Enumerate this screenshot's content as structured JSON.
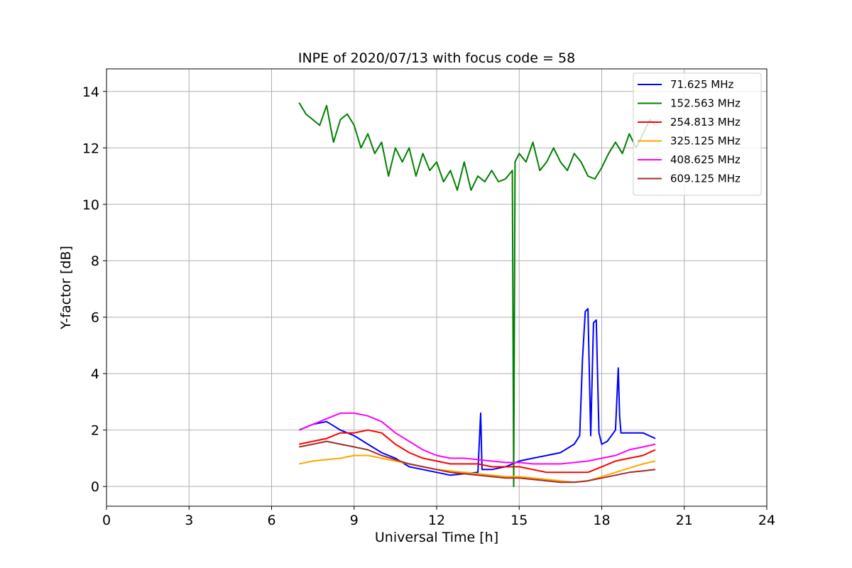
{
  "chart_data": {
    "type": "line",
    "title": "INPE of 2020/07/13 with focus code = 58",
    "xlabel": "Universal Time [h]",
    "ylabel": "Y-factor [dB]",
    "xlim": [
      0,
      24
    ],
    "ylim": [
      -0.7,
      14.8
    ],
    "xticks": [
      0,
      3,
      6,
      9,
      12,
      15,
      18,
      21,
      24
    ],
    "yticks": [
      0,
      2,
      4,
      6,
      8,
      10,
      12,
      14
    ],
    "grid": true,
    "legend_position": "top-right",
    "series": [
      {
        "name": " 71.625 MHz",
        "color": "#0000ff",
        "x": [
          7.0,
          7.5,
          8.0,
          8.5,
          9.0,
          9.5,
          10.0,
          10.5,
          11.0,
          11.5,
          12.0,
          12.5,
          13.0,
          13.5,
          13.6,
          13.65,
          13.7,
          14.0,
          14.5,
          15.0,
          15.5,
          16.0,
          16.5,
          17.0,
          17.2,
          17.3,
          17.4,
          17.5,
          17.6,
          17.7,
          17.8,
          17.9,
          18.0,
          18.2,
          18.5,
          18.6,
          18.65,
          18.7,
          19.0,
          19.5,
          19.95
        ],
        "y": [
          2.0,
          2.2,
          2.3,
          2.0,
          1.8,
          1.5,
          1.2,
          1.0,
          0.7,
          0.6,
          0.5,
          0.4,
          0.45,
          0.5,
          2.6,
          0.6,
          0.6,
          0.6,
          0.7,
          0.9,
          1.0,
          1.1,
          1.2,
          1.5,
          1.8,
          4.5,
          6.2,
          6.3,
          1.8,
          5.8,
          5.9,
          1.9,
          1.5,
          1.6,
          2.0,
          4.2,
          2.5,
          1.9,
          1.9,
          1.9,
          1.7
        ]
      },
      {
        "name": "152.563 MHz",
        "color": "#008000",
        "x": [
          7.0,
          7.25,
          7.5,
          7.75,
          8.0,
          8.25,
          8.5,
          8.75,
          9.0,
          9.25,
          9.5,
          9.75,
          10.0,
          10.25,
          10.5,
          10.75,
          11.0,
          11.25,
          11.5,
          11.75,
          12.0,
          12.25,
          12.5,
          12.75,
          13.0,
          13.25,
          13.5,
          13.75,
          14.0,
          14.25,
          14.5,
          14.75,
          14.8,
          14.85,
          15.0,
          15.25,
          15.5,
          15.75,
          16.0,
          16.25,
          16.5,
          16.75,
          17.0,
          17.25,
          17.5,
          17.75,
          18.0,
          18.25,
          18.5,
          18.75,
          19.0,
          19.25,
          19.5,
          19.75,
          19.95
        ],
        "y": [
          13.6,
          13.2,
          13.0,
          12.8,
          13.5,
          12.2,
          13.0,
          13.2,
          12.8,
          12.0,
          12.5,
          11.8,
          12.2,
          11.0,
          12.0,
          11.5,
          12.0,
          11.0,
          11.8,
          11.2,
          11.5,
          10.8,
          11.2,
          10.5,
          11.5,
          10.5,
          11.0,
          10.8,
          11.2,
          10.8,
          10.9,
          11.2,
          0.0,
          11.5,
          11.8,
          11.5,
          12.2,
          11.2,
          11.5,
          12.0,
          11.5,
          11.2,
          11.8,
          11.5,
          11.0,
          10.9,
          11.3,
          11.8,
          12.2,
          11.8,
          12.5,
          12.0,
          12.5,
          13.0,
          12.8
        ]
      },
      {
        "name": "254.813 MHz",
        "color": "#ff0000",
        "x": [
          7.0,
          7.5,
          8.0,
          8.5,
          9.0,
          9.5,
          10.0,
          10.5,
          11.0,
          11.5,
          12.0,
          12.5,
          13.0,
          13.5,
          14.0,
          14.5,
          15.0,
          15.5,
          16.0,
          16.5,
          17.0,
          17.5,
          18.0,
          18.5,
          19.0,
          19.5,
          19.95
        ],
        "y": [
          1.5,
          1.6,
          1.7,
          1.9,
          1.9,
          2.0,
          1.9,
          1.5,
          1.2,
          1.0,
          0.9,
          0.8,
          0.8,
          0.8,
          0.7,
          0.7,
          0.7,
          0.6,
          0.5,
          0.5,
          0.5,
          0.5,
          0.7,
          0.9,
          1.0,
          1.1,
          1.3
        ]
      },
      {
        "name": "325.125 MHz",
        "color": "#ffa500",
        "x": [
          7.0,
          7.5,
          8.0,
          8.5,
          9.0,
          9.5,
          10.0,
          10.5,
          11.0,
          11.5,
          12.0,
          12.5,
          13.0,
          13.5,
          14.0,
          14.5,
          15.0,
          15.5,
          16.0,
          16.5,
          17.0,
          17.5,
          18.0,
          18.5,
          19.0,
          19.5,
          19.95
        ],
        "y": [
          0.8,
          0.9,
          0.95,
          1.0,
          1.1,
          1.1,
          1.0,
          0.9,
          0.8,
          0.7,
          0.6,
          0.55,
          0.5,
          0.45,
          0.4,
          0.35,
          0.35,
          0.3,
          0.25,
          0.2,
          0.15,
          0.2,
          0.35,
          0.5,
          0.65,
          0.8,
          0.9
        ]
      },
      {
        "name": "408.625 MHz",
        "color": "#ff00ff",
        "x": [
          7.0,
          7.5,
          8.0,
          8.5,
          9.0,
          9.5,
          10.0,
          10.5,
          11.0,
          11.5,
          12.0,
          12.5,
          13.0,
          13.5,
          14.0,
          14.5,
          15.0,
          15.5,
          16.0,
          16.5,
          17.0,
          17.5,
          18.0,
          18.5,
          19.0,
          19.5,
          19.95
        ],
        "y": [
          2.0,
          2.2,
          2.4,
          2.6,
          2.6,
          2.5,
          2.3,
          1.9,
          1.6,
          1.3,
          1.1,
          1.0,
          1.0,
          0.95,
          0.9,
          0.85,
          0.85,
          0.8,
          0.8,
          0.8,
          0.85,
          0.9,
          1.0,
          1.1,
          1.3,
          1.4,
          1.5
        ]
      },
      {
        "name": "609.125 MHz",
        "color": "#a52a2a",
        "x": [
          7.0,
          7.5,
          8.0,
          8.5,
          9.0,
          9.5,
          10.0,
          10.5,
          11.0,
          11.5,
          12.0,
          12.5,
          13.0,
          13.5,
          14.0,
          14.5,
          15.0,
          15.5,
          16.0,
          16.5,
          17.0,
          17.5,
          18.0,
          18.5,
          19.0,
          19.5,
          19.95
        ],
        "y": [
          1.4,
          1.5,
          1.6,
          1.5,
          1.4,
          1.3,
          1.1,
          0.95,
          0.8,
          0.7,
          0.6,
          0.5,
          0.45,
          0.4,
          0.35,
          0.3,
          0.3,
          0.25,
          0.2,
          0.15,
          0.15,
          0.2,
          0.3,
          0.4,
          0.5,
          0.55,
          0.6
        ]
      }
    ]
  }
}
